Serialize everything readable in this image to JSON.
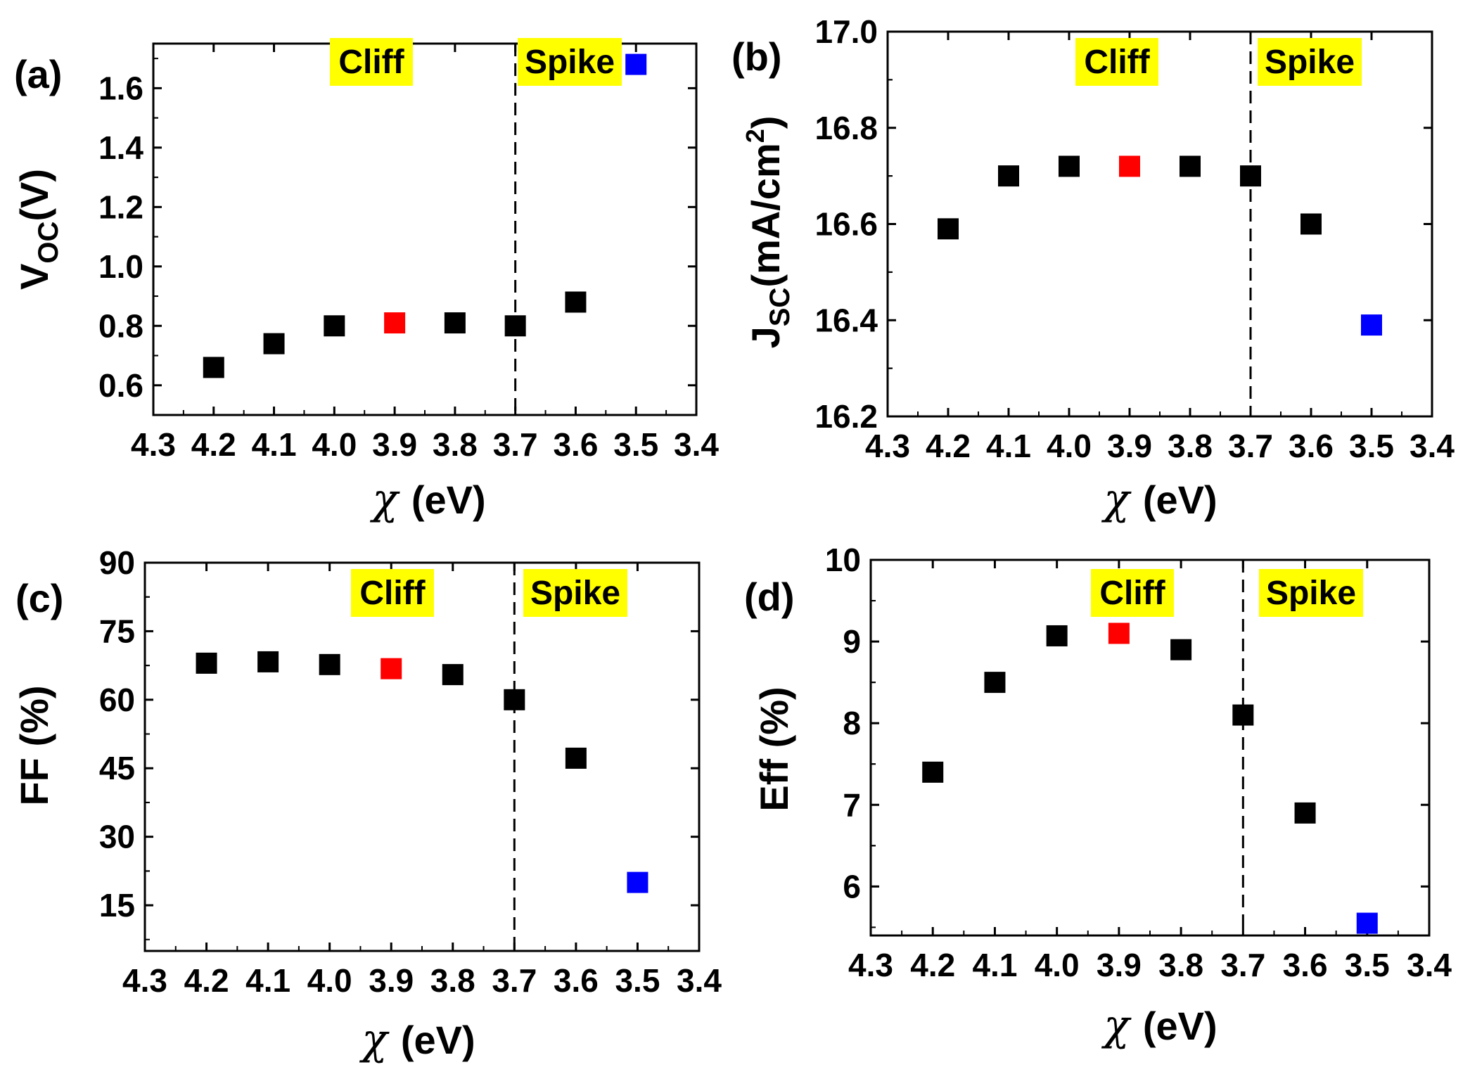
{
  "chart_data": [
    {
      "panel_label": "(a)",
      "type": "scatter",
      "xlabel": "(eV)",
      "ylabel": "V",
      "ylabel_sub": "OC",
      "ylabel_unit": "(V)",
      "xlim": [
        4.3,
        3.4
      ],
      "ylim": [
        0.5,
        1.75
      ],
      "x_reversed": true,
      "xticks": [
        "4.3",
        "4.2",
        "4.1",
        "4.0",
        "3.9",
        "3.8",
        "3.7",
        "3.6",
        "3.5",
        "3.4"
      ],
      "yticks": [
        "0.6",
        "0.8",
        "1.0",
        "1.2",
        "1.4",
        "1.6"
      ],
      "divider_x": 3.7,
      "regions": [
        "Cliff",
        "Spike"
      ],
      "points": [
        {
          "x": 4.2,
          "y": 0.66,
          "color": "#000000"
        },
        {
          "x": 4.1,
          "y": 0.74,
          "color": "#000000"
        },
        {
          "x": 4.0,
          "y": 0.8,
          "color": "#000000"
        },
        {
          "x": 3.9,
          "y": 0.81,
          "color": "#ff0000"
        },
        {
          "x": 3.8,
          "y": 0.81,
          "color": "#000000"
        },
        {
          "x": 3.7,
          "y": 0.8,
          "color": "#000000"
        },
        {
          "x": 3.6,
          "y": 0.88,
          "color": "#000000"
        },
        {
          "x": 3.5,
          "y": 1.68,
          "color": "#0000ff"
        }
      ]
    },
    {
      "panel_label": "(b)",
      "type": "scatter",
      "xlabel": "(eV)",
      "ylabel": "J",
      "ylabel_sub": "SC",
      "ylabel_unit": "(mA/cm",
      "ylabel_sup": "2",
      "ylabel_close": ")",
      "xlim": [
        4.3,
        3.4
      ],
      "ylim": [
        16.2,
        17.0
      ],
      "x_reversed": true,
      "xticks": [
        "4.3",
        "4.2",
        "4.1",
        "4.0",
        "3.9",
        "3.8",
        "3.7",
        "3.6",
        "3.5",
        "3.4"
      ],
      "yticks": [
        "16.2",
        "16.4",
        "16.6",
        "16.8",
        "17.0"
      ],
      "divider_x": 3.7,
      "regions": [
        "Cliff",
        "Spike"
      ],
      "points": [
        {
          "x": 4.2,
          "y": 16.59,
          "color": "#000000"
        },
        {
          "x": 4.1,
          "y": 16.7,
          "color": "#000000"
        },
        {
          "x": 4.0,
          "y": 16.72,
          "color": "#000000"
        },
        {
          "x": 3.9,
          "y": 16.72,
          "color": "#ff0000"
        },
        {
          "x": 3.8,
          "y": 16.72,
          "color": "#000000"
        },
        {
          "x": 3.7,
          "y": 16.7,
          "color": "#000000"
        },
        {
          "x": 3.6,
          "y": 16.6,
          "color": "#000000"
        },
        {
          "x": 3.5,
          "y": 16.39,
          "color": "#0000ff"
        }
      ]
    },
    {
      "panel_label": "(c)",
      "type": "scatter",
      "xlabel": "(eV)",
      "ylabel": "FF (%)",
      "xlim": [
        4.3,
        3.4
      ],
      "ylim": [
        5,
        90
      ],
      "x_reversed": true,
      "xticks": [
        "4.3",
        "4.2",
        "4.1",
        "4.0",
        "3.9",
        "3.8",
        "3.7",
        "3.6",
        "3.5",
        "3.4"
      ],
      "yticks": [
        "15",
        "30",
        "45",
        "60",
        "75",
        "90"
      ],
      "divider_x": 3.7,
      "regions": [
        "Cliff",
        "Spike"
      ],
      "points": [
        {
          "x": 4.2,
          "y": 68,
          "color": "#000000"
        },
        {
          "x": 4.1,
          "y": 68.3,
          "color": "#000000"
        },
        {
          "x": 4.0,
          "y": 67.7,
          "color": "#000000"
        },
        {
          "x": 3.9,
          "y": 66.8,
          "color": "#ff0000"
        },
        {
          "x": 3.8,
          "y": 65.5,
          "color": "#000000"
        },
        {
          "x": 3.7,
          "y": 60,
          "color": "#000000"
        },
        {
          "x": 3.6,
          "y": 47.2,
          "color": "#000000"
        },
        {
          "x": 3.5,
          "y": 20,
          "color": "#0000ff"
        }
      ]
    },
    {
      "panel_label": "(d)",
      "type": "scatter",
      "xlabel": "(eV)",
      "ylabel": "Eff (%)",
      "xlim": [
        4.3,
        3.4
      ],
      "ylim": [
        5.4,
        10
      ],
      "x_reversed": true,
      "xticks": [
        "4.3",
        "4.2",
        "4.1",
        "4.0",
        "3.9",
        "3.8",
        "3.7",
        "3.6",
        "3.5",
        "3.4"
      ],
      "yticks": [
        "6",
        "7",
        "8",
        "9",
        "10"
      ],
      "divider_x": 3.7,
      "regions": [
        "Cliff",
        "Spike"
      ],
      "points": [
        {
          "x": 4.2,
          "y": 7.4,
          "color": "#000000"
        },
        {
          "x": 4.1,
          "y": 8.5,
          "color": "#000000"
        },
        {
          "x": 4.0,
          "y": 9.07,
          "color": "#000000"
        },
        {
          "x": 3.9,
          "y": 9.1,
          "color": "#ff0000"
        },
        {
          "x": 3.8,
          "y": 8.9,
          "color": "#000000"
        },
        {
          "x": 3.7,
          "y": 8.1,
          "color": "#000000"
        },
        {
          "x": 3.6,
          "y": 6.9,
          "color": "#000000"
        },
        {
          "x": 3.5,
          "y": 5.55,
          "color": "#0000ff"
        }
      ]
    }
  ],
  "colors": {
    "region_label_bg": "#ffff00",
    "reference_point": "#ff0000",
    "outlier_point": "#0000ff",
    "data_point": "#000000"
  },
  "symbols": {
    "chi": "χ"
  }
}
